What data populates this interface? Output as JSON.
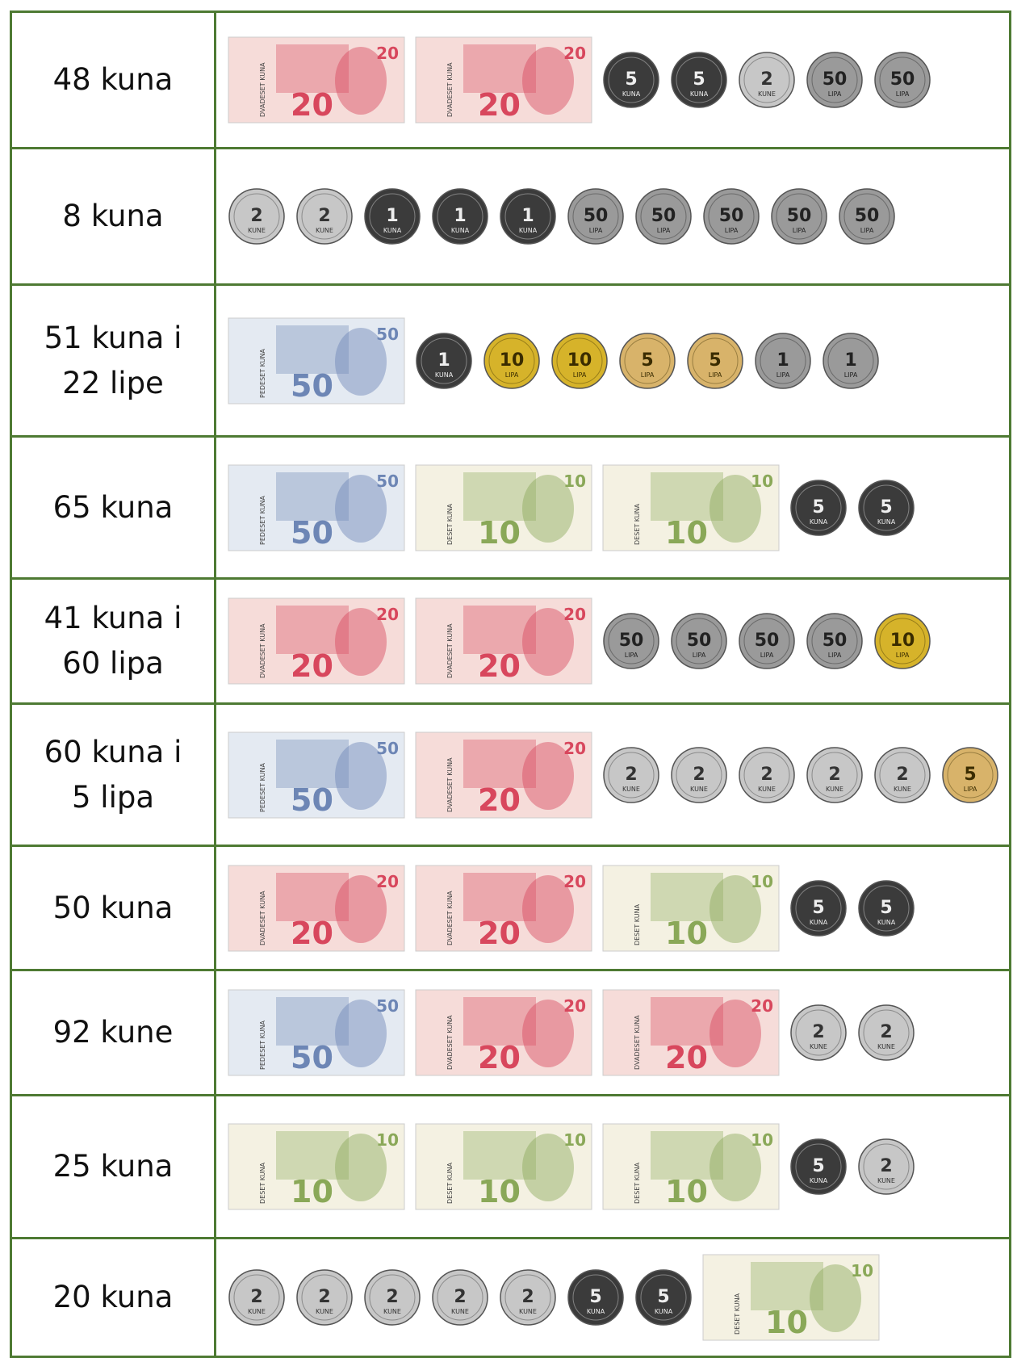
{
  "rows": [
    {
      "label": [
        "48 kuna"
      ],
      "items": [
        {
          "kind": "note",
          "value": "20",
          "unit": "DVADESET KUNA"
        },
        {
          "kind": "note",
          "value": "20",
          "unit": "DVADESET KUNA"
        },
        {
          "kind": "coin",
          "value": "5",
          "unit": "KUNA"
        },
        {
          "kind": "coin",
          "value": "5",
          "unit": "KUNA"
        },
        {
          "kind": "coin",
          "value": "2",
          "unit": "KUNE"
        },
        {
          "kind": "coin",
          "value": "50",
          "unit": "LIPA"
        },
        {
          "kind": "coin",
          "value": "50",
          "unit": "LIPA"
        }
      ]
    },
    {
      "label": [
        "8 kuna"
      ],
      "items": [
        {
          "kind": "coin",
          "value": "2",
          "unit": "KUNE"
        },
        {
          "kind": "coin",
          "value": "2",
          "unit": "KUNE"
        },
        {
          "kind": "coin",
          "value": "1",
          "unit": "KUNA"
        },
        {
          "kind": "coin",
          "value": "1",
          "unit": "KUNA"
        },
        {
          "kind": "coin",
          "value": "1",
          "unit": "KUNA"
        },
        {
          "kind": "coin",
          "value": "50",
          "unit": "LIPA"
        },
        {
          "kind": "coin",
          "value": "50",
          "unit": "LIPA"
        },
        {
          "kind": "coin",
          "value": "50",
          "unit": "LIPA"
        },
        {
          "kind": "coin",
          "value": "50",
          "unit": "LIPA"
        },
        {
          "kind": "coin",
          "value": "50",
          "unit": "LIPA"
        }
      ]
    },
    {
      "label": [
        "51 kuna i",
        "22 lipe"
      ],
      "items": [
        {
          "kind": "note",
          "value": "50",
          "unit": "PEDESET KUNA"
        },
        {
          "kind": "coin",
          "value": "1",
          "unit": "KUNA"
        },
        {
          "kind": "coin",
          "value": "10",
          "unit": "LIPA"
        },
        {
          "kind": "coin",
          "value": "10",
          "unit": "LIPA"
        },
        {
          "kind": "coin",
          "value": "5",
          "unit": "LIPA"
        },
        {
          "kind": "coin",
          "value": "5",
          "unit": "LIPA"
        },
        {
          "kind": "coin",
          "value": "1",
          "unit": "LIPA"
        },
        {
          "kind": "coin",
          "value": "1",
          "unit": "LIPA"
        }
      ]
    },
    {
      "label": [
        "65 kuna"
      ],
      "items": [
        {
          "kind": "note",
          "value": "50",
          "unit": "PEDESET KUNA"
        },
        {
          "kind": "note",
          "value": "10",
          "unit": "DESET KUNA"
        },
        {
          "kind": "note",
          "value": "10",
          "unit": "DESET KUNA"
        },
        {
          "kind": "coin",
          "value": "5",
          "unit": "KUNA"
        },
        {
          "kind": "coin",
          "value": "5",
          "unit": "KUNA"
        }
      ]
    },
    {
      "label": [
        "41 kuna i",
        "60 lipa"
      ],
      "items": [
        {
          "kind": "note",
          "value": "20",
          "unit": "DVADESET KUNA"
        },
        {
          "kind": "note",
          "value": "20",
          "unit": "DVADESET KUNA"
        },
        {
          "kind": "coin",
          "value": "50",
          "unit": "LIPA"
        },
        {
          "kind": "coin",
          "value": "50",
          "unit": "LIPA"
        },
        {
          "kind": "coin",
          "value": "50",
          "unit": "LIPA"
        },
        {
          "kind": "coin",
          "value": "50",
          "unit": "LIPA"
        },
        {
          "kind": "coin",
          "value": "10",
          "unit": "LIPA"
        }
      ]
    },
    {
      "label": [
        "60 kuna i",
        "5 lipa"
      ],
      "items": [
        {
          "kind": "note",
          "value": "50",
          "unit": "PEDESET KUNA"
        },
        {
          "kind": "note",
          "value": "20",
          "unit": "DVADESET KUNA"
        },
        {
          "kind": "coin",
          "value": "2",
          "unit": "KUNE"
        },
        {
          "kind": "coin",
          "value": "2",
          "unit": "KUNE"
        },
        {
          "kind": "coin",
          "value": "2",
          "unit": "KUNE"
        },
        {
          "kind": "coin",
          "value": "2",
          "unit": "KUNE"
        },
        {
          "kind": "coin",
          "value": "2",
          "unit": "KUNE"
        },
        {
          "kind": "coin",
          "value": "5",
          "unit": "LIPA"
        }
      ]
    },
    {
      "label": [
        "50 kuna"
      ],
      "items": [
        {
          "kind": "note",
          "value": "20",
          "unit": "DVADESET KUNA"
        },
        {
          "kind": "note",
          "value": "20",
          "unit": "DVADESET KUNA"
        },
        {
          "kind": "note",
          "value": "10",
          "unit": "DESET KUNA"
        },
        {
          "kind": "coin",
          "value": "5",
          "unit": "KUNA"
        },
        {
          "kind": "coin",
          "value": "5",
          "unit": "KUNA"
        }
      ]
    },
    {
      "label": [
        "92 kune"
      ],
      "items": [
        {
          "kind": "note",
          "value": "50",
          "unit": "PEDESET KUNA"
        },
        {
          "kind": "note",
          "value": "20",
          "unit": "DVADESET KUNA"
        },
        {
          "kind": "note",
          "value": "20",
          "unit": "DVADESET KUNA"
        },
        {
          "kind": "coin",
          "value": "2",
          "unit": "KUNE"
        },
        {
          "kind": "coin",
          "value": "2",
          "unit": "KUNE"
        }
      ]
    },
    {
      "label": [
        "25 kuna"
      ],
      "items": [
        {
          "kind": "note",
          "value": "10",
          "unit": "DESET KUNA"
        },
        {
          "kind": "note",
          "value": "10",
          "unit": "DESET KUNA"
        },
        {
          "kind": "note",
          "value": "10",
          "unit": "DESET KUNA"
        },
        {
          "kind": "coin",
          "value": "5",
          "unit": "KUNA"
        },
        {
          "kind": "coin",
          "value": "2",
          "unit": "KUNE"
        }
      ]
    },
    {
      "label": [
        "20 kuna"
      ],
      "items": [
        {
          "kind": "coin",
          "value": "2",
          "unit": "KUNE"
        },
        {
          "kind": "coin",
          "value": "2",
          "unit": "KUNE"
        },
        {
          "kind": "coin",
          "value": "2",
          "unit": "KUNE"
        },
        {
          "kind": "coin",
          "value": "2",
          "unit": "KUNE"
        },
        {
          "kind": "coin",
          "value": "2",
          "unit": "KUNE"
        },
        {
          "kind": "coin",
          "value": "5",
          "unit": "KUNA"
        },
        {
          "kind": "coin",
          "value": "5",
          "unit": "KUNA"
        },
        {
          "kind": "note",
          "value": "10",
          "unit": "DESET KUNA"
        }
      ]
    }
  ]
}
